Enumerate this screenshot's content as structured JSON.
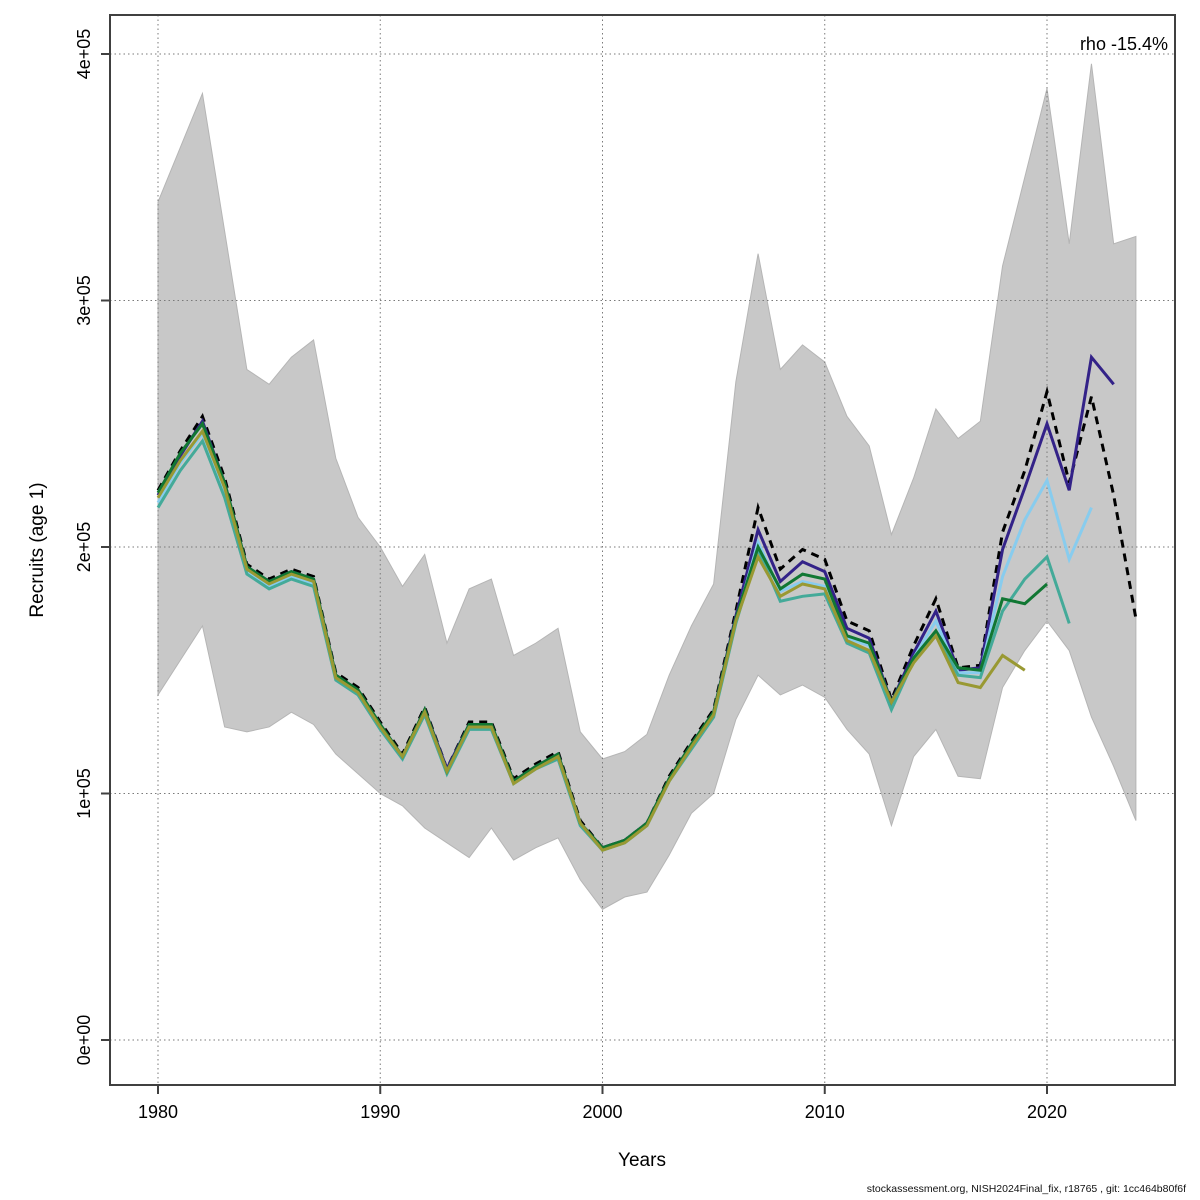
{
  "annotation": {
    "rho_label": "rho -15.4%"
  },
  "footer": {
    "source_text": "stockassessment.org, NISH2024Final_fix, r18765 , git: 1cc464b80f6f"
  },
  "axes": {
    "x": {
      "label": "Years",
      "ticks": [
        {
          "label": "1980",
          "value": 1980
        },
        {
          "label": "1990",
          "value": 1990
        },
        {
          "label": "2000",
          "value": 2000
        },
        {
          "label": "2010",
          "value": 2010
        },
        {
          "label": "2020",
          "value": 2020
        }
      ]
    },
    "y": {
      "label": "Recruits (age 1)",
      "ticks": [
        {
          "label": "0e+00",
          "value": 0
        },
        {
          "label": "1e+05",
          "value": 100000
        },
        {
          "label": "2e+05",
          "value": 200000
        },
        {
          "label": "3e+05",
          "value": 300000
        },
        {
          "label": "4e+05",
          "value": 400000
        }
      ]
    }
  },
  "chart_data": {
    "type": "line",
    "title": "",
    "xlabel": "Years",
    "ylabel": "Recruits (age 1)",
    "xlim": [
      1977.8,
      2025.8
    ],
    "ylim": [
      -18000,
      416000
    ],
    "grid": "dotted",
    "legend": "none",
    "x": [
      1980,
      1981,
      1982,
      1983,
      1984,
      1985,
      1986,
      1987,
      1988,
      1989,
      1990,
      1991,
      1992,
      1993,
      1994,
      1995,
      1996,
      1997,
      1998,
      1999,
      2000,
      2001,
      2002,
      2003,
      2004,
      2005,
      2006,
      2007,
      2008,
      2009,
      2010,
      2011,
      2012,
      2013,
      2014,
      2015,
      2016,
      2017,
      2018,
      2019,
      2020,
      2021,
      2022,
      2023,
      2024
    ],
    "band": {
      "name": "confidence-interval",
      "color": "#c8c8c8",
      "upper": [
        340000,
        362000,
        384000,
        328000,
        272000,
        266000,
        277000,
        284000,
        236000,
        212000,
        200000,
        184000,
        197000,
        161000,
        183000,
        187000,
        156000,
        161000,
        167000,
        125000,
        114000,
        117000,
        124000,
        148000,
        168000,
        185000,
        267000,
        319000,
        272000,
        282000,
        275000,
        253000,
        241000,
        205000,
        228000,
        256000,
        244000,
        251000,
        314000,
        350000,
        386000,
        323000,
        396000,
        323000,
        326000
      ],
      "lower": [
        140000,
        154000,
        168000,
        127000,
        125000,
        127000,
        133000,
        128000,
        116000,
        108000,
        100000,
        95000,
        86000,
        80000,
        74000,
        86000,
        73000,
        78000,
        82000,
        65000,
        53000,
        58000,
        60000,
        75000,
        92000,
        100000,
        130000,
        148000,
        140000,
        144000,
        139000,
        126000,
        116000,
        87000,
        115000,
        126000,
        107000,
        106000,
        143000,
        158000,
        170000,
        158000,
        131000,
        111000,
        89000
      ]
    },
    "series": [
      {
        "name": "base-run",
        "color": "#000000",
        "dash": "dashed",
        "values": [
          223000,
          239000,
          253000,
          228000,
          193000,
          187000,
          191000,
          188000,
          149000,
          143000,
          129000,
          116000,
          135000,
          110000,
          129000,
          129000,
          106000,
          112000,
          117000,
          89000,
          78000,
          81000,
          88000,
          107000,
          121000,
          134000,
          174000,
          216000,
          191000,
          199000,
          195000,
          170000,
          166000,
          138000,
          160000,
          179000,
          151000,
          152000,
          206000,
          231000,
          263000,
          226000,
          261000,
          221000,
          171000
        ]
      },
      {
        "name": "retro-peel-1",
        "color": "#332288",
        "dash": "solid",
        "values": [
          221000,
          237000,
          251000,
          226000,
          192000,
          186000,
          190000,
          187000,
          148000,
          142000,
          128000,
          115000,
          134000,
          110000,
          128000,
          128000,
          105000,
          111000,
          116000,
          88000,
          78000,
          81000,
          88000,
          106000,
          120000,
          133000,
          172000,
          207000,
          186000,
          194000,
          190000,
          167000,
          163000,
          137000,
          157000,
          174000,
          150000,
          151000,
          199000,
          224000,
          250000,
          223000,
          277000,
          266000,
          null
        ]
      },
      {
        "name": "retro-peel-2",
        "color": "#88CCEE",
        "dash": "solid",
        "values": [
          218000,
          234000,
          246000,
          222000,
          190000,
          184000,
          188000,
          185000,
          147000,
          141000,
          127000,
          114000,
          133000,
          109000,
          127000,
          127000,
          104000,
          110000,
          115000,
          88000,
          77000,
          80000,
          87000,
          105000,
          119000,
          132000,
          170000,
          202000,
          182000,
          186000,
          184000,
          163000,
          160000,
          135000,
          155000,
          170000,
          149000,
          149000,
          188000,
          211000,
          227000,
          195000,
          216000,
          null,
          null
        ]
      },
      {
        "name": "retro-peel-3",
        "color": "#44AA99",
        "dash": "solid",
        "values": [
          216000,
          231000,
          243000,
          220000,
          189000,
          183000,
          187000,
          184000,
          146000,
          140000,
          126000,
          114000,
          132000,
          108000,
          126000,
          126000,
          104000,
          110000,
          114000,
          87000,
          77000,
          80000,
          87000,
          105000,
          118000,
          131000,
          169000,
          199000,
          178000,
          180000,
          181000,
          161000,
          157000,
          134000,
          154000,
          165000,
          148000,
          147000,
          174000,
          187000,
          196000,
          169000,
          null,
          null,
          null
        ]
      },
      {
        "name": "retro-peel-4",
        "color": "#117733",
        "dash": "solid",
        "values": [
          222000,
          238000,
          250000,
          226000,
          192000,
          186000,
          190000,
          187000,
          148000,
          142000,
          128000,
          115000,
          134000,
          109000,
          128000,
          128000,
          105000,
          111000,
          116000,
          88000,
          78000,
          81000,
          88000,
          106000,
          120000,
          133000,
          171000,
          200000,
          183000,
          189000,
          187000,
          164000,
          161000,
          137000,
          155000,
          166000,
          151000,
          150000,
          179000,
          177000,
          185000,
          null,
          null,
          null,
          null
        ]
      },
      {
        "name": "retro-peel-5",
        "color": "#999933",
        "dash": "solid",
        "values": [
          220000,
          235000,
          247000,
          224000,
          191000,
          185000,
          189000,
          186000,
          147000,
          141000,
          127000,
          115000,
          133000,
          109000,
          127000,
          127000,
          104000,
          110000,
          115000,
          88000,
          77000,
          80000,
          87000,
          105000,
          119000,
          132000,
          170000,
          196000,
          180000,
          185000,
          183000,
          162000,
          158000,
          137000,
          153000,
          164000,
          145000,
          143000,
          156000,
          150000,
          null,
          null,
          null,
          null,
          null
        ]
      }
    ]
  }
}
